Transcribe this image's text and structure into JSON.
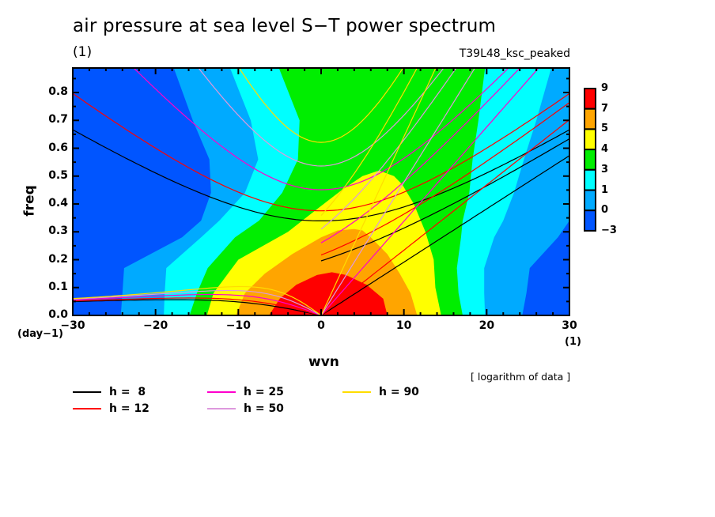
{
  "chart_data": {
    "type": "contour",
    "title": "air pressure at sea level S−T power spectrum",
    "units_label": "(1)",
    "run_name": "T39L48_ksc_peaked",
    "xlabel": "wvn",
    "x_units": "(1)",
    "ylabel": "freq",
    "y_units": "(day−1)",
    "xlim": [
      -30,
      30
    ],
    "ylim": [
      0,
      0.888
    ],
    "x_ticks": [
      -30,
      -20,
      -10,
      0,
      10,
      20,
      30
    ],
    "x_tick_labels": [
      "−30",
      "−20",
      "−10",
      "0",
      "10",
      "20",
      "30"
    ],
    "y_ticks": [
      0.0,
      0.1,
      0.2,
      0.3,
      0.4,
      0.5,
      0.6,
      0.7,
      0.8
    ],
    "y_tick_labels": [
      "0.0",
      "0.1",
      "0.2",
      "0.3",
      "0.4",
      "0.5",
      "0.6",
      "0.7",
      "0.8"
    ],
    "note": "[ logarithm of data ]",
    "colorbar": {
      "labels": [
        "9",
        "7",
        "5",
        "4",
        "3",
        "1",
        "0",
        "−3"
      ],
      "colors": [
        "#ff0000",
        "#ffa500",
        "#ffff00",
        "#00ee00",
        "#00ffff",
        "#00aaff",
        "#0055ff"
      ]
    },
    "filled_levels": [
      {
        "level": "-3..0",
        "color": "#0055ff"
      },
      {
        "level": "0..1",
        "color": "#00aaff"
      },
      {
        "level": "1..3",
        "color": "#00ffff"
      },
      {
        "level": "3..4",
        "color": "#00ee00"
      },
      {
        "level": "4..5",
        "color": "#ffff00"
      },
      {
        "level": "5..7",
        "color": "#ffa500"
      },
      {
        "level": "7..9",
        "color": "#ff0000"
      }
    ],
    "dispersion_curves": [
      {
        "label": "h =  8",
        "h": 8,
        "color": "#000000"
      },
      {
        "label": "h = 12",
        "h": 12,
        "color": "#ff0000"
      },
      {
        "label": "h = 25",
        "h": 25,
        "color": "#ff00cc"
      },
      {
        "label": "h = 50",
        "h": 50,
        "color": "#dd99dd"
      },
      {
        "label": "h = 90",
        "h": 90,
        "color": "#ffdd00"
      }
    ]
  }
}
